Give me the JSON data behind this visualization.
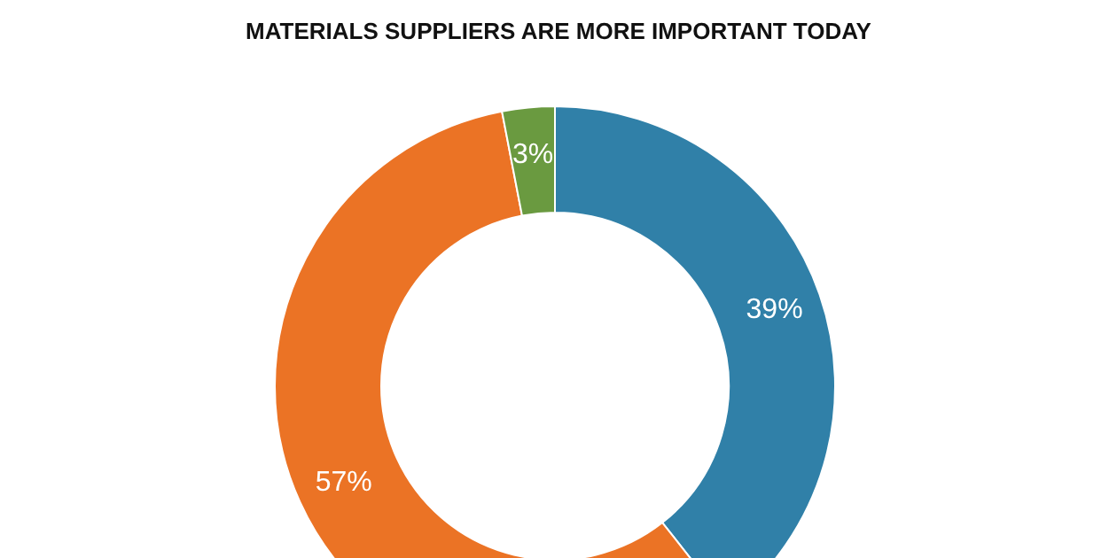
{
  "chart_data": {
    "type": "donut",
    "title": "MATERIALS SUPPLIERS ARE MORE IMPORTANT TODAY",
    "categories": [
      null,
      null,
      null
    ],
    "values": [
      39,
      57,
      3
    ],
    "value_labels": [
      "39%",
      "57%",
      "3%"
    ],
    "colors": [
      "#3080a8",
      "#eb7325",
      "#6a9a40"
    ]
  }
}
